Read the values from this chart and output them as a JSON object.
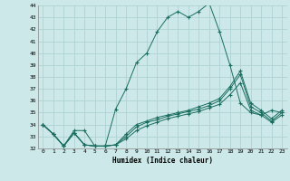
{
  "xlabel": "Humidex (Indice chaleur)",
  "ylabel": "",
  "bg_color": "#cce8e8",
  "grid_color": "#aacece",
  "line_color": "#1a6e60",
  "xlim": [
    -0.5,
    23.5
  ],
  "ylim": [
    32,
    44
  ],
  "x_ticks": [
    0,
    1,
    2,
    3,
    4,
    5,
    6,
    7,
    8,
    9,
    10,
    11,
    12,
    13,
    14,
    15,
    16,
    17,
    18,
    19,
    20,
    21,
    22,
    23
  ],
  "y_ticks": [
    32,
    33,
    34,
    35,
    36,
    37,
    38,
    39,
    40,
    41,
    42,
    43,
    44
  ],
  "series": [
    [
      34.0,
      33.2,
      32.2,
      33.5,
      33.5,
      32.2,
      32.2,
      35.3,
      37.0,
      39.2,
      40.0,
      41.8,
      43.0,
      43.5,
      43.0,
      43.5,
      44.2,
      41.8,
      39.0,
      35.8,
      35.0,
      34.8,
      35.2,
      35.0
    ],
    [
      34.0,
      33.2,
      32.2,
      33.3,
      32.3,
      32.2,
      32.2,
      32.3,
      33.2,
      34.0,
      34.3,
      34.6,
      34.8,
      35.0,
      35.2,
      35.5,
      35.8,
      36.2,
      37.2,
      38.5,
      35.8,
      35.2,
      34.5,
      35.2
    ],
    [
      34.0,
      33.2,
      32.2,
      33.3,
      32.3,
      32.2,
      32.2,
      32.3,
      33.0,
      33.8,
      34.2,
      34.4,
      34.7,
      34.9,
      35.1,
      35.3,
      35.6,
      36.0,
      37.0,
      38.2,
      35.5,
      35.0,
      34.3,
      35.0
    ],
    [
      34.0,
      33.2,
      32.2,
      33.3,
      32.3,
      32.2,
      32.2,
      32.3,
      32.8,
      33.5,
      33.9,
      34.2,
      34.5,
      34.7,
      34.9,
      35.1,
      35.4,
      35.7,
      36.5,
      37.5,
      35.2,
      34.8,
      34.2,
      34.8
    ]
  ],
  "figsize": [
    3.2,
    2.0
  ],
  "dpi": 100
}
